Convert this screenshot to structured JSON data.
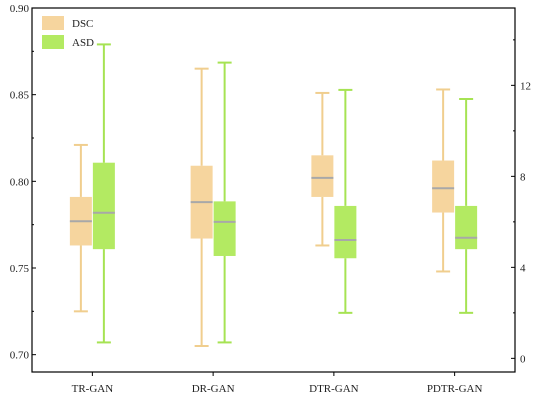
{
  "colors": {
    "DSC": "#f6d59e",
    "DSC_whisker": "#f0ce8e",
    "ASD": "#b3ea62",
    "ASD_whisker": "#a6e353",
    "median": "#a8a8a8",
    "axis": "#000000"
  },
  "chart_data": {
    "type": "box",
    "title": "",
    "xlabel": "",
    "ylabel": "",
    "y2label": "",
    "categories": [
      "TR-GAN",
      "DR-GAN",
      "DTR-GAN",
      "PDTR-GAN"
    ],
    "ylim": [
      0.69,
      0.9
    ],
    "yticks": [
      "0.70",
      "0.75",
      "0.80",
      "0.85",
      "0.90"
    ],
    "y2lim": [
      -0.6,
      15.4
    ],
    "y2ticks": [
      "0",
      "4",
      "8",
      "12"
    ],
    "grid": false,
    "legend_position": "top-left",
    "series": [
      {
        "name": "DSC",
        "axis": "left",
        "color_key": "DSC",
        "boxes": [
          {
            "min": 0.725,
            "q1": 0.763,
            "median": 0.777,
            "q3": 0.791,
            "max": 0.821
          },
          {
            "min": 0.705,
            "q1": 0.767,
            "median": 0.788,
            "q3": 0.809,
            "max": 0.865
          },
          {
            "min": 0.763,
            "q1": 0.791,
            "median": 0.802,
            "q3": 0.815,
            "max": 0.851
          },
          {
            "min": 0.748,
            "q1": 0.782,
            "median": 0.796,
            "q3": 0.812,
            "max": 0.853
          }
        ]
      },
      {
        "name": "ASD",
        "axis": "right",
        "color_key": "ASD",
        "boxes": [
          {
            "min": 0.7,
            "q1": 4.8,
            "median": 6.4,
            "q3": 8.6,
            "max": 13.8
          },
          {
            "min": 0.7,
            "q1": 4.5,
            "median": 6.0,
            "q3": 6.9,
            "max": 13.0
          },
          {
            "min": 2.0,
            "q1": 4.4,
            "median": 5.2,
            "q3": 6.7,
            "max": 11.8
          },
          {
            "min": 2.0,
            "q1": 4.8,
            "median": 5.3,
            "q3": 6.7,
            "max": 11.4
          }
        ]
      }
    ]
  }
}
